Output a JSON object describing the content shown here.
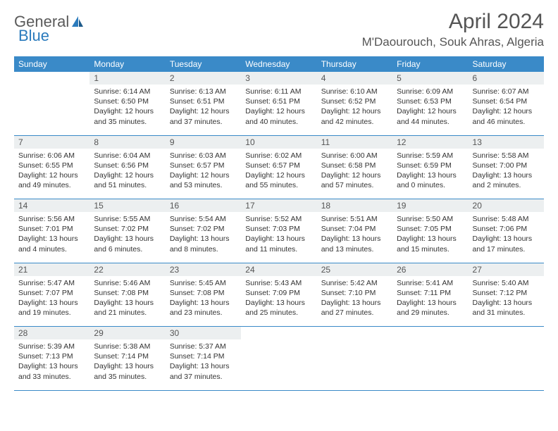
{
  "logo": {
    "text1": "General",
    "text2": "Blue"
  },
  "title": "April 2024",
  "location": "M'Daourouch, Souk Ahras, Algeria",
  "colors": {
    "header_bg": "#3a8ac8",
    "header_text": "#ffffff",
    "daynum_bg": "#eceff0",
    "border": "#3a8ac8",
    "logo_gray": "#5a5a5a",
    "logo_blue": "#2b7bbd"
  },
  "daysOfWeek": [
    "Sunday",
    "Monday",
    "Tuesday",
    "Wednesday",
    "Thursday",
    "Friday",
    "Saturday"
  ],
  "weeks": [
    {
      "nums": [
        "",
        "1",
        "2",
        "3",
        "4",
        "5",
        "6"
      ],
      "cells": [
        null,
        {
          "sr": "Sunrise: 6:14 AM",
          "ss": "Sunset: 6:50 PM",
          "d1": "Daylight: 12 hours",
          "d2": "and 35 minutes."
        },
        {
          "sr": "Sunrise: 6:13 AM",
          "ss": "Sunset: 6:51 PM",
          "d1": "Daylight: 12 hours",
          "d2": "and 37 minutes."
        },
        {
          "sr": "Sunrise: 6:11 AM",
          "ss": "Sunset: 6:51 PM",
          "d1": "Daylight: 12 hours",
          "d2": "and 40 minutes."
        },
        {
          "sr": "Sunrise: 6:10 AM",
          "ss": "Sunset: 6:52 PM",
          "d1": "Daylight: 12 hours",
          "d2": "and 42 minutes."
        },
        {
          "sr": "Sunrise: 6:09 AM",
          "ss": "Sunset: 6:53 PM",
          "d1": "Daylight: 12 hours",
          "d2": "and 44 minutes."
        },
        {
          "sr": "Sunrise: 6:07 AM",
          "ss": "Sunset: 6:54 PM",
          "d1": "Daylight: 12 hours",
          "d2": "and 46 minutes."
        }
      ]
    },
    {
      "nums": [
        "7",
        "8",
        "9",
        "10",
        "11",
        "12",
        "13"
      ],
      "cells": [
        {
          "sr": "Sunrise: 6:06 AM",
          "ss": "Sunset: 6:55 PM",
          "d1": "Daylight: 12 hours",
          "d2": "and 49 minutes."
        },
        {
          "sr": "Sunrise: 6:04 AM",
          "ss": "Sunset: 6:56 PM",
          "d1": "Daylight: 12 hours",
          "d2": "and 51 minutes."
        },
        {
          "sr": "Sunrise: 6:03 AM",
          "ss": "Sunset: 6:57 PM",
          "d1": "Daylight: 12 hours",
          "d2": "and 53 minutes."
        },
        {
          "sr": "Sunrise: 6:02 AM",
          "ss": "Sunset: 6:57 PM",
          "d1": "Daylight: 12 hours",
          "d2": "and 55 minutes."
        },
        {
          "sr": "Sunrise: 6:00 AM",
          "ss": "Sunset: 6:58 PM",
          "d1": "Daylight: 12 hours",
          "d2": "and 57 minutes."
        },
        {
          "sr": "Sunrise: 5:59 AM",
          "ss": "Sunset: 6:59 PM",
          "d1": "Daylight: 13 hours",
          "d2": "and 0 minutes."
        },
        {
          "sr": "Sunrise: 5:58 AM",
          "ss": "Sunset: 7:00 PM",
          "d1": "Daylight: 13 hours",
          "d2": "and 2 minutes."
        }
      ]
    },
    {
      "nums": [
        "14",
        "15",
        "16",
        "17",
        "18",
        "19",
        "20"
      ],
      "cells": [
        {
          "sr": "Sunrise: 5:56 AM",
          "ss": "Sunset: 7:01 PM",
          "d1": "Daylight: 13 hours",
          "d2": "and 4 minutes."
        },
        {
          "sr": "Sunrise: 5:55 AM",
          "ss": "Sunset: 7:02 PM",
          "d1": "Daylight: 13 hours",
          "d2": "and 6 minutes."
        },
        {
          "sr": "Sunrise: 5:54 AM",
          "ss": "Sunset: 7:02 PM",
          "d1": "Daylight: 13 hours",
          "d2": "and 8 minutes."
        },
        {
          "sr": "Sunrise: 5:52 AM",
          "ss": "Sunset: 7:03 PM",
          "d1": "Daylight: 13 hours",
          "d2": "and 11 minutes."
        },
        {
          "sr": "Sunrise: 5:51 AM",
          "ss": "Sunset: 7:04 PM",
          "d1": "Daylight: 13 hours",
          "d2": "and 13 minutes."
        },
        {
          "sr": "Sunrise: 5:50 AM",
          "ss": "Sunset: 7:05 PM",
          "d1": "Daylight: 13 hours",
          "d2": "and 15 minutes."
        },
        {
          "sr": "Sunrise: 5:48 AM",
          "ss": "Sunset: 7:06 PM",
          "d1": "Daylight: 13 hours",
          "d2": "and 17 minutes."
        }
      ]
    },
    {
      "nums": [
        "21",
        "22",
        "23",
        "24",
        "25",
        "26",
        "27"
      ],
      "cells": [
        {
          "sr": "Sunrise: 5:47 AM",
          "ss": "Sunset: 7:07 PM",
          "d1": "Daylight: 13 hours",
          "d2": "and 19 minutes."
        },
        {
          "sr": "Sunrise: 5:46 AM",
          "ss": "Sunset: 7:08 PM",
          "d1": "Daylight: 13 hours",
          "d2": "and 21 minutes."
        },
        {
          "sr": "Sunrise: 5:45 AM",
          "ss": "Sunset: 7:08 PM",
          "d1": "Daylight: 13 hours",
          "d2": "and 23 minutes."
        },
        {
          "sr": "Sunrise: 5:43 AM",
          "ss": "Sunset: 7:09 PM",
          "d1": "Daylight: 13 hours",
          "d2": "and 25 minutes."
        },
        {
          "sr": "Sunrise: 5:42 AM",
          "ss": "Sunset: 7:10 PM",
          "d1": "Daylight: 13 hours",
          "d2": "and 27 minutes."
        },
        {
          "sr": "Sunrise: 5:41 AM",
          "ss": "Sunset: 7:11 PM",
          "d1": "Daylight: 13 hours",
          "d2": "and 29 minutes."
        },
        {
          "sr": "Sunrise: 5:40 AM",
          "ss": "Sunset: 7:12 PM",
          "d1": "Daylight: 13 hours",
          "d2": "and 31 minutes."
        }
      ]
    },
    {
      "nums": [
        "28",
        "29",
        "30",
        "",
        "",
        "",
        ""
      ],
      "cells": [
        {
          "sr": "Sunrise: 5:39 AM",
          "ss": "Sunset: 7:13 PM",
          "d1": "Daylight: 13 hours",
          "d2": "and 33 minutes."
        },
        {
          "sr": "Sunrise: 5:38 AM",
          "ss": "Sunset: 7:14 PM",
          "d1": "Daylight: 13 hours",
          "d2": "and 35 minutes."
        },
        {
          "sr": "Sunrise: 5:37 AM",
          "ss": "Sunset: 7:14 PM",
          "d1": "Daylight: 13 hours",
          "d2": "and 37 minutes."
        },
        null,
        null,
        null,
        null
      ]
    }
  ]
}
